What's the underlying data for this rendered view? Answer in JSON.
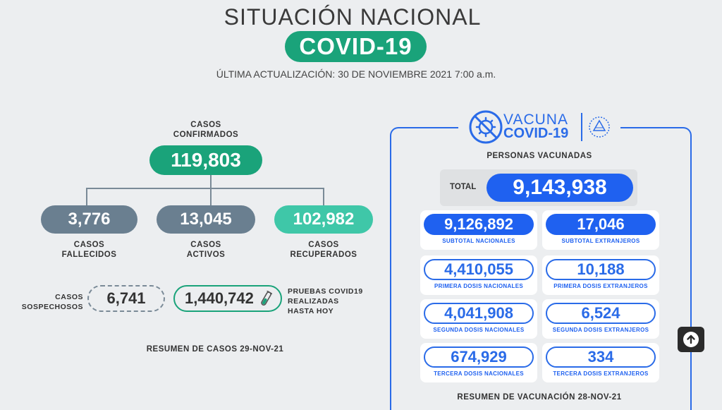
{
  "header": {
    "title": "SITUACIÓN NACIONAL",
    "badge": "COVID-19",
    "updated": "ÚLTIMA ACTUALIZACIÓN: 30 DE NOVIEMBRE 2021 7:00 a.m."
  },
  "cases": {
    "confirmed_label_1": "CASOS",
    "confirmed_label_2": "CONFIRMADOS",
    "confirmed_value": "119,803",
    "deaths_value": "3,776",
    "deaths_label_1": "CASOS",
    "deaths_label_2": "FALLECIDOS",
    "active_value": "13,045",
    "active_label_1": "CASOS",
    "active_label_2": "ACTIVOS",
    "recovered_value": "102,982",
    "recovered_label_1": "CASOS",
    "recovered_label_2": "RECUPERADOS",
    "suspect_label_1": "CASOS",
    "suspect_label_2": "SOSPECHOSOS",
    "suspect_value": "6,741",
    "tests_value": "1,440,742",
    "tests_label_1": "PRUEBAS COVID19",
    "tests_label_2": "REALIZADAS",
    "tests_label_3": "HASTA HOY",
    "summary": "RESUMEN DE CASOS 29-NOV-21"
  },
  "vaccine": {
    "logo_word": "VACUNA",
    "logo_covid": "COVID-19",
    "persons_label": "PERSONAS VACUNADAS",
    "total_label": "TOTAL",
    "total_value": "9,143,938",
    "cards": [
      {
        "value": "9,126,892",
        "label": "SUBTOTAL NACIONALES"
      },
      {
        "value": "17,046",
        "label": "SUBTOTAL EXTRANJEROS"
      },
      {
        "value": "4,410,055",
        "label": "PRIMERA DOSIS NACIONALES"
      },
      {
        "value": "10,188",
        "label": "PRIMERA DOSIS EXTRANJEROS"
      },
      {
        "value": "4,041,908",
        "label": "SEGUNDA DOSIS NACIONALES"
      },
      {
        "value": "6,524",
        "label": "SEGUNDA DOSIS EXTRANJEROS"
      },
      {
        "value": "674,929",
        "label": "TERCERA DOSIS NACIONALES"
      },
      {
        "value": "334",
        "label": "TERCERA DOSIS EXTRANJEROS"
      }
    ],
    "summary": "RESUMEN DE VACUNACIÓN 28-NOV-21"
  },
  "colors": {
    "green": "#1aa37a",
    "teal": "#3fc7a8",
    "slate": "#6a7f90",
    "blue": "#1f61f0"
  },
  "icons": {
    "virus": "virus-crossed-icon",
    "seal": "el-salvador-seal-icon",
    "tube": "test-tube-icon",
    "scroll": "arrow-up-icon"
  }
}
